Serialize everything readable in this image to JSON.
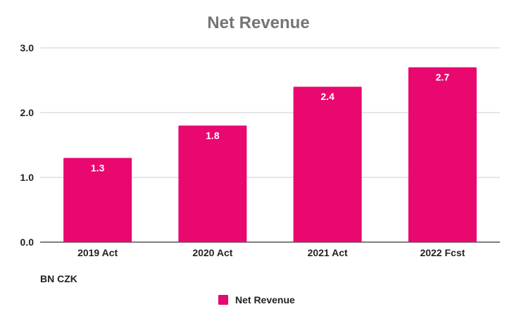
{
  "chart_data": {
    "type": "bar",
    "title": "Net Revenue",
    "categories": [
      "2019 Act",
      "2020 Act",
      "2021 Act",
      "2022 Fcst"
    ],
    "series": [
      {
        "name": "Net Revenue",
        "values": [
          1.3,
          1.8,
          2.4,
          2.7
        ],
        "color": "#e8086f"
      }
    ],
    "data_labels": [
      "1.3",
      "1.8",
      "2.4",
      "2.7"
    ],
    "ylim": [
      0,
      3
    ],
    "yticks": [
      "0.0",
      "1.0",
      "2.0",
      "3.0"
    ],
    "unit_label": "BN CZK",
    "grid": true,
    "legend": "bottom",
    "colors": {
      "bar": "#e8086f",
      "grid": "#cccccc",
      "axis": "#333333",
      "title": "#757575"
    }
  }
}
